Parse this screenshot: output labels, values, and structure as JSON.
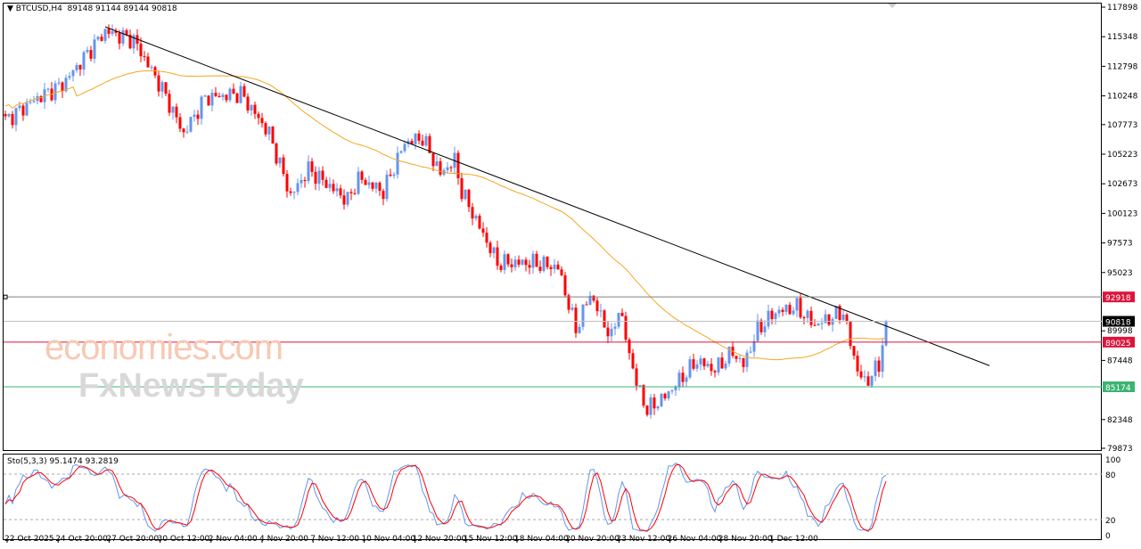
{
  "header": {
    "symbol": "BTCUSD,H4",
    "ohlc": "89148 91144 89144 90818"
  },
  "watermark": {
    "line1": "economies.com",
    "line2": "FxNewsToday"
  },
  "stoch": {
    "label": "Sto(5,3,3) 95.1474 93.2819",
    "levels": [
      "100",
      "80",
      "20",
      "0"
    ]
  },
  "chart_data": {
    "type": "candlestick",
    "title": "BTCUSD,H4",
    "ylim": [
      79873,
      117898
    ],
    "y_ticks": [
      117898,
      115348,
      112798,
      110248,
      107773,
      105223,
      102673,
      100123,
      97573,
      95023,
      89998,
      87448,
      82348,
      79873
    ],
    "x_labels": [
      "22 Oct 2025",
      "24 Oct 20:00",
      "27 Oct 20:00",
      "30 Oct 12:00",
      "2 Nov 04:00",
      "4 Nov 20:00",
      "7 Nov 12:00",
      "10 Nov 04:00",
      "12 Nov 20:00",
      "15 Nov 12:00",
      "18 Nov 04:00",
      "20 Nov 20:00",
      "23 Nov 12:00",
      "26 Nov 04:00",
      "28 Nov 20:00",
      "1 Dec 12:00"
    ],
    "candle_count": 248,
    "close_path": [
      [
        0,
        108140
      ],
      [
        9,
        110060
      ],
      [
        16,
        111215
      ],
      [
        28,
        115825
      ],
      [
        36,
        115055
      ],
      [
        44,
        110830
      ],
      [
        50,
        106990
      ],
      [
        56,
        110060
      ],
      [
        66,
        110450
      ],
      [
        74,
        106990
      ],
      [
        80,
        101615
      ],
      [
        85,
        103920
      ],
      [
        96,
        101230
      ],
      [
        99,
        103150
      ],
      [
        106,
        101995
      ],
      [
        112,
        106225
      ],
      [
        117,
        106610
      ],
      [
        122,
        103535
      ],
      [
        126,
        104690
      ],
      [
        128,
        101995
      ],
      [
        133,
        98925
      ],
      [
        138,
        95850
      ],
      [
        148,
        95850
      ],
      [
        155,
        95465
      ],
      [
        160,
        90095
      ],
      [
        164,
        93165
      ],
      [
        170,
        89325
      ],
      [
        172,
        92010
      ],
      [
        177,
        85485
      ],
      [
        180,
        83180
      ],
      [
        185,
        84335
      ],
      [
        194,
        87405
      ],
      [
        199,
        86635
      ],
      [
        204,
        88170
      ],
      [
        207,
        87020
      ],
      [
        211,
        90095
      ],
      [
        216,
        91630
      ],
      [
        222,
        92010
      ],
      [
        227,
        90475
      ],
      [
        235,
        91630
      ],
      [
        237,
        88940
      ],
      [
        239,
        86635
      ],
      [
        241,
        85485
      ],
      [
        245,
        87020
      ],
      [
        247,
        90818
      ]
    ],
    "moving_average": {
      "color": "#f5a623"
    },
    "trendline": {
      "from": [
        28,
        116200
      ],
      "to": [
        276,
        87000
      ]
    },
    "levels": [
      {
        "price": 92918,
        "label": "92918",
        "color": "#dc143c",
        "line": "#808080"
      },
      {
        "price": 90818,
        "label": "90818",
        "color": "#000000",
        "line": "#c0c0c0"
      },
      {
        "price": 89025,
        "label": "89025",
        "color": "#dc143c",
        "line": "#dc143c"
      },
      {
        "price": 85174,
        "label": "85174",
        "color": "#3cb371",
        "line": "#3cb371"
      }
    ],
    "colors": {
      "up": "#6495ed",
      "down": "#ff0000"
    }
  }
}
